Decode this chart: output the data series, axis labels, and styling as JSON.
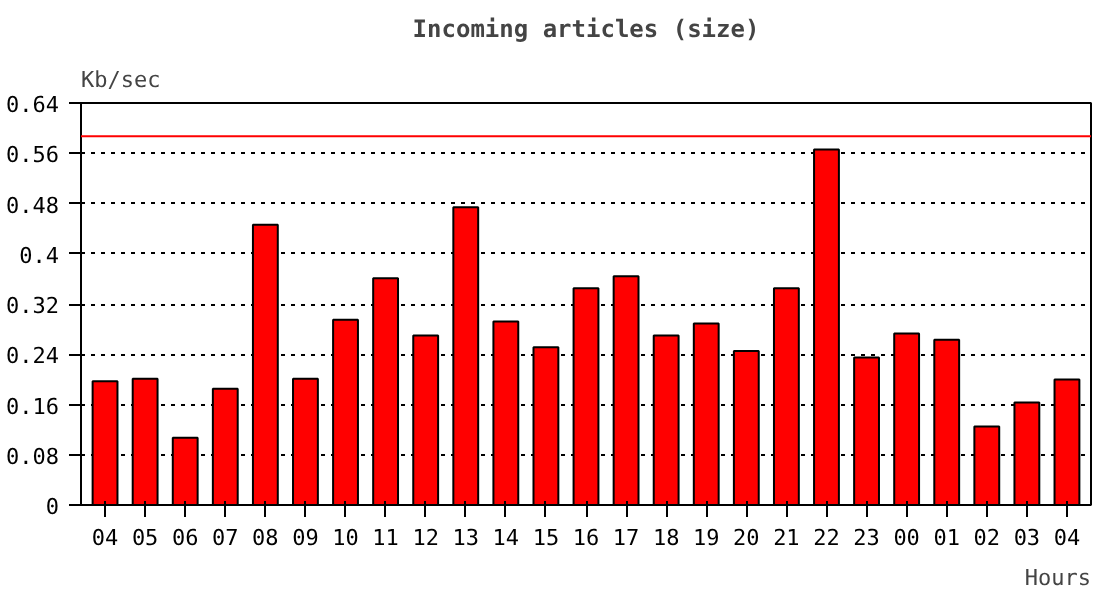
{
  "chart_data": {
    "type": "bar",
    "title": "Incoming articles (size)",
    "ylabel": "Kb/sec",
    "xlabel": "Hours",
    "categories": [
      "04",
      "05",
      "06",
      "07",
      "08",
      "09",
      "10",
      "11",
      "12",
      "13",
      "14",
      "15",
      "16",
      "17",
      "18",
      "19",
      "20",
      "21",
      "22",
      "23",
      "00",
      "01",
      "02",
      "03",
      "04"
    ],
    "values": [
      0.197,
      0.201,
      0.107,
      0.185,
      0.446,
      0.201,
      0.295,
      0.361,
      0.27,
      0.474,
      0.292,
      0.251,
      0.345,
      0.364,
      0.27,
      0.289,
      0.245,
      0.345,
      0.566,
      0.235,
      0.273,
      0.263,
      0.125,
      0.163,
      0.2
    ],
    "color": "#ff0000",
    "ylim": [
      0,
      0.64
    ],
    "yticks": [
      0,
      0.08,
      0.16,
      0.24,
      0.32,
      0.4,
      0.48,
      0.56,
      0.64
    ],
    "grid": "y",
    "ref_lines": [
      {
        "axis": "y",
        "value": 0.587,
        "color": "#ff0000"
      }
    ]
  }
}
